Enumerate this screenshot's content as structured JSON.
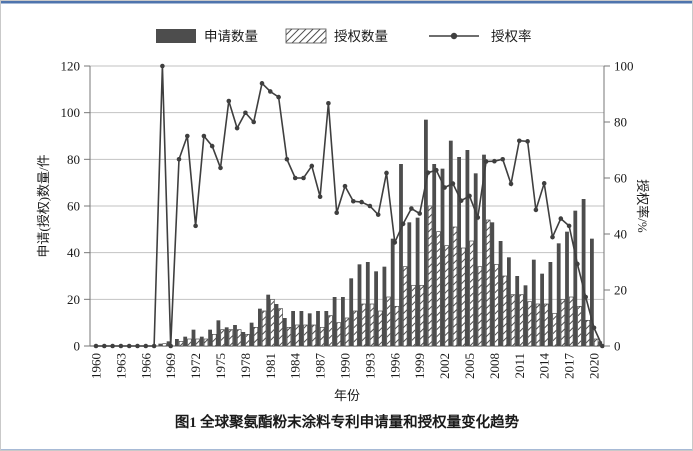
{
  "figure": {
    "caption": "图1  全球聚氨酯粉末涂料专利申请量和授权量变化趋势",
    "xlabel": "年份",
    "ylabel_left": "申请(授权)数量/件",
    "ylabel_right": "授权率/%"
  },
  "legend": {
    "applications": "申请数量",
    "grants": "授权数量",
    "rate": "授权率"
  },
  "colors": {
    "bar_dark": "#4d4d4d",
    "hatch_stroke": "#4d4d4d",
    "line": "#3f3f3f",
    "grid": "#c2c2c2",
    "axis": "#777777",
    "text": "#1a1a1a",
    "frame_blue": "#4f74ad"
  },
  "chart_data": {
    "type": "bar",
    "subtype": "combo-bar-line-dual-axis",
    "title": "图1  全球聚氨酯粉末涂料专利申请量和授权量变化趋势",
    "xlabel": "年份",
    "ylabel": "申请(授权)数量/件",
    "ylabel_right": "授权率/%",
    "x": [
      1960,
      1961,
      1962,
      1963,
      1964,
      1965,
      1966,
      1967,
      1968,
      1969,
      1970,
      1971,
      1972,
      1973,
      1974,
      1975,
      1976,
      1977,
      1978,
      1979,
      1980,
      1981,
      1982,
      1983,
      1984,
      1985,
      1986,
      1987,
      1988,
      1989,
      1990,
      1991,
      1992,
      1993,
      1994,
      1995,
      1996,
      1997,
      1998,
      1999,
      2000,
      2001,
      2002,
      2003,
      2004,
      2005,
      2006,
      2007,
      2008,
      2009,
      2010,
      2011,
      2012,
      2013,
      2014,
      2015,
      2016,
      2017,
      2018,
      2019,
      2020,
      2021
    ],
    "series": [
      {
        "name": "申请数量",
        "type": "bar",
        "axis": "left",
        "style": "solid-dark",
        "values": [
          0,
          0,
          0,
          0,
          0,
          0,
          0,
          0,
          1,
          2,
          3,
          4,
          7,
          4,
          7,
          11,
          8,
          9,
          6,
          10,
          16,
          22,
          18,
          12,
          15,
          15,
          14,
          15,
          15,
          21,
          21,
          29,
          35,
          36,
          32,
          34,
          46,
          78,
          53,
          55,
          97,
          78,
          76,
          88,
          81,
          84,
          74,
          82,
          53,
          45,
          38,
          30,
          26,
          37,
          31,
          36,
          44,
          49,
          58,
          63,
          46,
          2
        ]
      },
      {
        "name": "授权数量",
        "type": "bar",
        "axis": "left",
        "style": "diagonal-hatch",
        "values": [
          0,
          0,
          0,
          0,
          0,
          0,
          0,
          0,
          1,
          0,
          2,
          3,
          3,
          3,
          5,
          7,
          7,
          7,
          5,
          8,
          15,
          20,
          16,
          8,
          9,
          9,
          9,
          8,
          13,
          10,
          12,
          15,
          18,
          18,
          15,
          21,
          17,
          34,
          26,
          26,
          60,
          49,
          43,
          51,
          42,
          45,
          34,
          54,
          35,
          30,
          22,
          22,
          19,
          18,
          18,
          14,
          20,
          21,
          17,
          11,
          3,
          0
        ]
      },
      {
        "name": "授权率",
        "type": "line",
        "axis": "right",
        "marker": "circle",
        "values": [
          0,
          0,
          0,
          0,
          0,
          0,
          0,
          0,
          100,
          0,
          66.7,
          75,
          42.9,
          75,
          71.4,
          63.6,
          87.5,
          77.8,
          83.3,
          80,
          93.8,
          90.9,
          88.9,
          66.7,
          60,
          60,
          64.3,
          53.3,
          86.7,
          47.6,
          57.1,
          51.7,
          51.4,
          50,
          46.9,
          61.8,
          37,
          43.6,
          49.1,
          47.3,
          61.9,
          62.8,
          56.6,
          58,
          51.9,
          53.6,
          45.9,
          65.9,
          66,
          66.7,
          57.9,
          73.3,
          73.1,
          48.6,
          58.1,
          38.9,
          45.5,
          42.9,
          29.3,
          17.5,
          6.5,
          0
        ]
      }
    ],
    "axes": {
      "left_ticks": [
        0,
        20,
        40,
        60,
        80,
        100,
        120
      ],
      "right_ticks": [
        0,
        20,
        40,
        60,
        80,
        100
      ],
      "x_tick_labels": [
        "1960",
        "1963",
        "1966",
        "1969",
        "1972",
        "1975",
        "1978",
        "1981",
        "1984",
        "1987",
        "1990",
        "1993",
        "1996",
        "1999",
        "2002",
        "2005",
        "2008",
        "2011",
        "2014",
        "2017",
        "2020"
      ],
      "x_tick_step": 3,
      "ylim_left": [
        0,
        120
      ],
      "ylim_right": [
        0,
        100
      ],
      "grid": "horizontal",
      "legend_position": "top"
    }
  }
}
